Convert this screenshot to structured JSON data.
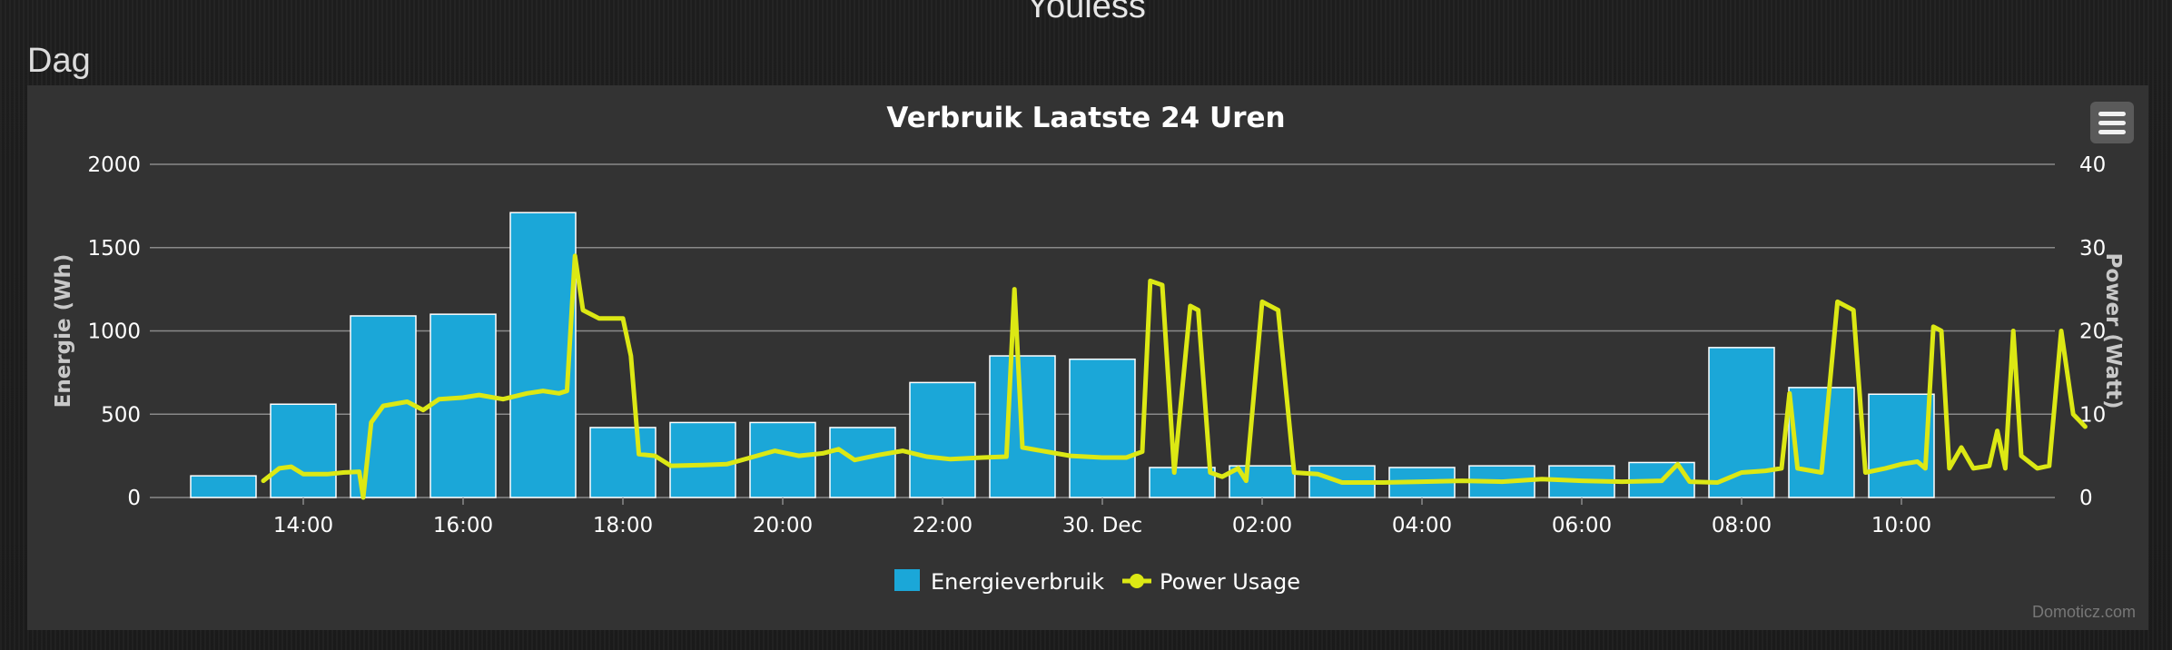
{
  "page": {
    "heading": "Youless",
    "section_title": "Dag"
  },
  "chart": {
    "menu_icon": "hamburger-menu-icon",
    "credits": "Domoticz.com"
  },
  "colors": {
    "bar": "#1ba7d8",
    "bar_border": "#ffffff",
    "line": "#dce814",
    "grid": "#8a8a8a",
    "text": "#ffffff",
    "axis_title": "#c8c8c8"
  },
  "chart_data": {
    "type": "bar",
    "title": "Verbruik Laatste 24 Uren",
    "grid": true,
    "legend_position": "bottom-center",
    "x_ticks": [
      "14:00",
      "16:00",
      "18:00",
      "20:00",
      "22:00",
      "30. Dec",
      "02:00",
      "04:00",
      "06:00",
      "08:00",
      "10:00"
    ],
    "x_tick_hours": [
      14,
      16,
      18,
      20,
      22,
      24,
      26,
      28,
      30,
      32,
      34
    ],
    "xlim_hours": [
      12,
      35.5
    ],
    "y_left": {
      "label": "Energie (Wh)",
      "lim": [
        0,
        2000
      ],
      "ticks": [
        "0",
        "500",
        "1000",
        "1500",
        "2000"
      ]
    },
    "y_right": {
      "label": "Power (Watt)",
      "lim": [
        0,
        40
      ],
      "ticks": [
        "0",
        "10",
        "20",
        "30",
        "40"
      ]
    },
    "series": [
      {
        "name": "Energieverbruik",
        "kind": "bar",
        "axis": "left",
        "hours": [
          13,
          14,
          15,
          16,
          17,
          18,
          19,
          20,
          21,
          22,
          23,
          24,
          25,
          26,
          27,
          28,
          29,
          30,
          31,
          32,
          33,
          34
        ],
        "values": [
          130,
          560,
          1090,
          1100,
          1710,
          420,
          450,
          450,
          420,
          690,
          850,
          830,
          180,
          190,
          190,
          180,
          190,
          190,
          210,
          900,
          660,
          620
        ]
      },
      {
        "name": "Power Usage",
        "kind": "line",
        "axis": "right",
        "points": [
          [
            13.5,
            2
          ],
          [
            13.7,
            3.5
          ],
          [
            13.85,
            3.7
          ],
          [
            14.0,
            2.8
          ],
          [
            14.3,
            2.8
          ],
          [
            14.5,
            3.0
          ],
          [
            14.7,
            3.1
          ],
          [
            14.75,
            0
          ],
          [
            14.85,
            9
          ],
          [
            15.0,
            11
          ],
          [
            15.3,
            11.5
          ],
          [
            15.5,
            10.5
          ],
          [
            15.7,
            11.8
          ],
          [
            16.0,
            12
          ],
          [
            16.2,
            12.3
          ],
          [
            16.5,
            11.8
          ],
          [
            16.8,
            12.5
          ],
          [
            17.0,
            12.8
          ],
          [
            17.2,
            12.5
          ],
          [
            17.3,
            12.8
          ],
          [
            17.4,
            29
          ],
          [
            17.5,
            22.5
          ],
          [
            17.7,
            21.5
          ],
          [
            18.0,
            21.5
          ],
          [
            18.1,
            17
          ],
          [
            18.2,
            5.2
          ],
          [
            18.4,
            5.0
          ],
          [
            18.6,
            3.8
          ],
          [
            19.0,
            3.9
          ],
          [
            19.3,
            4.0
          ],
          [
            19.6,
            4.8
          ],
          [
            19.9,
            5.6
          ],
          [
            20.2,
            5.0
          ],
          [
            20.5,
            5.3
          ],
          [
            20.7,
            5.8
          ],
          [
            20.9,
            4.5
          ],
          [
            21.2,
            5.1
          ],
          [
            21.5,
            5.6
          ],
          [
            21.8,
            4.9
          ],
          [
            22.1,
            4.6
          ],
          [
            22.5,
            4.8
          ],
          [
            22.8,
            4.9
          ],
          [
            22.9,
            25
          ],
          [
            23.0,
            6.0
          ],
          [
            23.3,
            5.5
          ],
          [
            23.6,
            5.0
          ],
          [
            24.0,
            4.8
          ],
          [
            24.3,
            4.8
          ],
          [
            24.5,
            5.5
          ],
          [
            24.6,
            26
          ],
          [
            24.75,
            25.5
          ],
          [
            24.9,
            3.0
          ],
          [
            25.1,
            23
          ],
          [
            25.2,
            22.5
          ],
          [
            25.35,
            3.0
          ],
          [
            25.5,
            2.5
          ],
          [
            25.7,
            3.5
          ],
          [
            25.8,
            2.0
          ],
          [
            26.0,
            23.5
          ],
          [
            26.2,
            22.5
          ],
          [
            26.4,
            3.0
          ],
          [
            26.7,
            2.8
          ],
          [
            27.0,
            1.8
          ],
          [
            27.5,
            1.8
          ],
          [
            28.0,
            1.9
          ],
          [
            28.5,
            2.0
          ],
          [
            29.0,
            1.9
          ],
          [
            29.5,
            2.2
          ],
          [
            30.0,
            2.0
          ],
          [
            30.5,
            1.9
          ],
          [
            31.0,
            2.0
          ],
          [
            31.2,
            4.0
          ],
          [
            31.35,
            1.9
          ],
          [
            31.7,
            1.8
          ],
          [
            32.0,
            3.0
          ],
          [
            32.3,
            3.2
          ],
          [
            32.5,
            3.5
          ],
          [
            32.6,
            12.5
          ],
          [
            32.7,
            3.5
          ],
          [
            33.0,
            3.0
          ],
          [
            33.2,
            23.5
          ],
          [
            33.4,
            22.5
          ],
          [
            33.55,
            3.0
          ],
          [
            33.8,
            3.5
          ],
          [
            34.0,
            4.0
          ],
          [
            34.2,
            4.3
          ],
          [
            34.3,
            3.5
          ],
          [
            34.4,
            20.5
          ],
          [
            34.5,
            20
          ],
          [
            34.6,
            3.5
          ],
          [
            34.75,
            6.0
          ],
          [
            34.9,
            3.5
          ],
          [
            35.1,
            3.8
          ],
          [
            35.2,
            8.0
          ],
          [
            35.3,
            3.5
          ],
          [
            35.4,
            20
          ],
          [
            35.5,
            5.0
          ],
          [
            35.7,
            3.5
          ],
          [
            35.85,
            3.8
          ],
          [
            36.0,
            20
          ],
          [
            36.15,
            10
          ],
          [
            36.3,
            8.5
          ]
        ]
      }
    ]
  }
}
